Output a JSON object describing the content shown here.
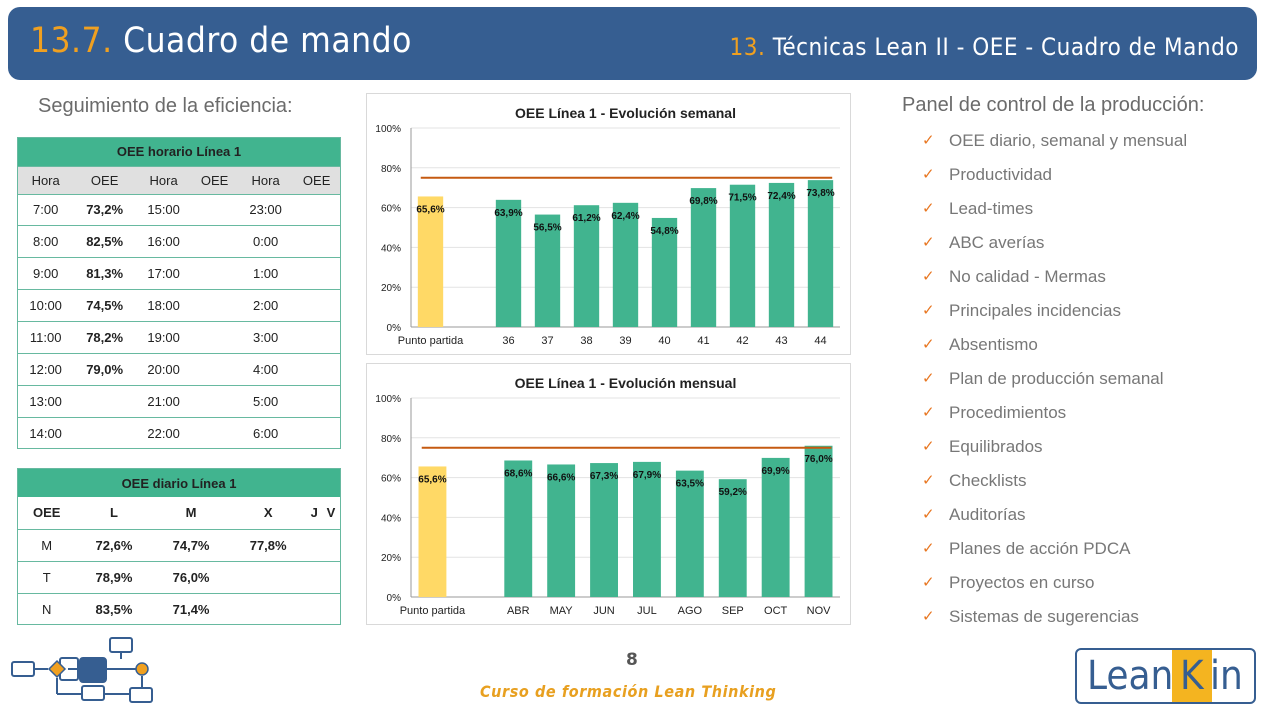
{
  "header": {
    "section_num": "13.7.",
    "section_title": "Cuadro de mando",
    "chapter_num": "13.",
    "chapter_title": "Técnicas Lean II - OEE - Cuadro de Mando"
  },
  "left": {
    "subtitle": "Seguimiento de la eficiencia:",
    "hourly": {
      "title": "OEE horario Línea 1",
      "headers": [
        "Hora",
        "OEE",
        "Hora",
        "OEE",
        "Hora",
        "OEE"
      ],
      "rows": [
        {
          "h1": "7:00",
          "v1": "73,2%",
          "c1": "orange",
          "h2": "15:00",
          "v2": "",
          "h3": "23:00",
          "v3": ""
        },
        {
          "h1": "8:00",
          "v1": "82,5%",
          "c1": "green",
          "h2": "16:00",
          "v2": "",
          "h3": "0:00",
          "v3": ""
        },
        {
          "h1": "9:00",
          "v1": "81,3%",
          "c1": "green",
          "h2": "17:00",
          "v2": "",
          "h3": "1:00",
          "v3": ""
        },
        {
          "h1": "10:00",
          "v1": "74,5%",
          "c1": "orange",
          "h2": "18:00",
          "v2": "",
          "h3": "2:00",
          "v3": ""
        },
        {
          "h1": "11:00",
          "v1": "78,2%",
          "c1": "green",
          "h2": "19:00",
          "v2": "",
          "h3": "3:00",
          "v3": ""
        },
        {
          "h1": "12:00",
          "v1": "79,0%",
          "c1": "green",
          "h2": "20:00",
          "v2": "",
          "h3": "4:00",
          "v3": ""
        },
        {
          "h1": "13:00",
          "v1": "",
          "c1": "",
          "h2": "21:00",
          "v2": "",
          "h3": "5:00",
          "v3": ""
        },
        {
          "h1": "14:00",
          "v1": "",
          "c1": "",
          "h2": "22:00",
          "v2": "",
          "h3": "6:00",
          "v3": ""
        }
      ]
    },
    "daily": {
      "title": "OEE diario Línea 1",
      "headers": [
        "OEE",
        "L",
        "M",
        "X",
        "J",
        "V"
      ],
      "rows": [
        {
          "shift": "M",
          "cells": [
            {
              "v": "72,6%",
              "c": "orange"
            },
            {
              "v": "74,7%",
              "c": "orange"
            },
            {
              "v": "77,8%",
              "c": "green"
            },
            {
              "v": "",
              "c": ""
            },
            {
              "v": "",
              "c": ""
            }
          ]
        },
        {
          "shift": "T",
          "cells": [
            {
              "v": "78,9%",
              "c": "green"
            },
            {
              "v": "76,0%",
              "c": "green"
            },
            {
              "v": "",
              "c": ""
            },
            {
              "v": "",
              "c": ""
            },
            {
              "v": "",
              "c": ""
            }
          ]
        },
        {
          "shift": "N",
          "cells": [
            {
              "v": "83,5%",
              "c": "green"
            },
            {
              "v": "71,4%",
              "c": "orange"
            },
            {
              "v": "",
              "c": ""
            },
            {
              "v": "",
              "c": ""
            },
            {
              "v": "",
              "c": ""
            }
          ]
        }
      ]
    }
  },
  "chart_data": [
    {
      "type": "bar",
      "title": "OEE Línea 1 - Evolución semanal",
      "categories": [
        "Punto partida",
        "",
        "36",
        "37",
        "38",
        "39",
        "40",
        "41",
        "42",
        "43",
        "44"
      ],
      "values": [
        65.6,
        null,
        63.9,
        56.5,
        61.2,
        62.4,
        54.8,
        69.8,
        71.5,
        72.4,
        73.8
      ],
      "labels": [
        "65,6%",
        "",
        "63,9%",
        "56,5%",
        "61,2%",
        "62,4%",
        "54,8%",
        "69,8%",
        "71,5%",
        "72,4%",
        "73,8%"
      ],
      "target": 75,
      "ylim": [
        0,
        100
      ],
      "yticks": [
        "0%",
        "20%",
        "40%",
        "60%",
        "80%",
        "100%"
      ],
      "colors": {
        "baseline": "#ffd966",
        "bars": "#41b48f",
        "target": "#c55a11"
      }
    },
    {
      "type": "bar",
      "title": "OEE Línea 1 - Evolución mensual",
      "categories": [
        "Punto partida",
        "",
        "ABR",
        "MAY",
        "JUN",
        "JUL",
        "AGO",
        "SEP",
        "OCT",
        "NOV"
      ],
      "values": [
        65.6,
        null,
        68.6,
        66.6,
        67.3,
        67.9,
        63.5,
        59.2,
        69.9,
        76.0
      ],
      "labels": [
        "65,6%",
        "",
        "68,6%",
        "66,6%",
        "67,3%",
        "67,9%",
        "63,5%",
        "59,2%",
        "69,9%",
        "76,0%"
      ],
      "target": 75,
      "ylim": [
        0,
        100
      ],
      "yticks": [
        "0%",
        "20%",
        "40%",
        "60%",
        "80%",
        "100%"
      ],
      "colors": {
        "baseline": "#ffd966",
        "bars": "#41b48f",
        "target": "#c55a11"
      }
    }
  ],
  "panel": {
    "title": "Panel de control de la producción:",
    "check_icon": "✓",
    "items": [
      "OEE diario, semanal y mensual",
      "Productividad",
      "Lead-times",
      "ABC averías",
      "No calidad - Mermas",
      "Principales incidencias",
      "Absentismo",
      "Plan de producción semanal",
      "Procedimientos",
      "Equilibrados",
      "Checklists",
      "Auditorías",
      "Planes de acción PDCA",
      "Proyectos en curso",
      "Sistemas de sugerencias"
    ]
  },
  "footer": {
    "page_number": "8",
    "course": "Curso de formación Lean Thinking",
    "logo_part1": "Lean",
    "logo_part2": "K",
    "logo_part3": "in"
  }
}
